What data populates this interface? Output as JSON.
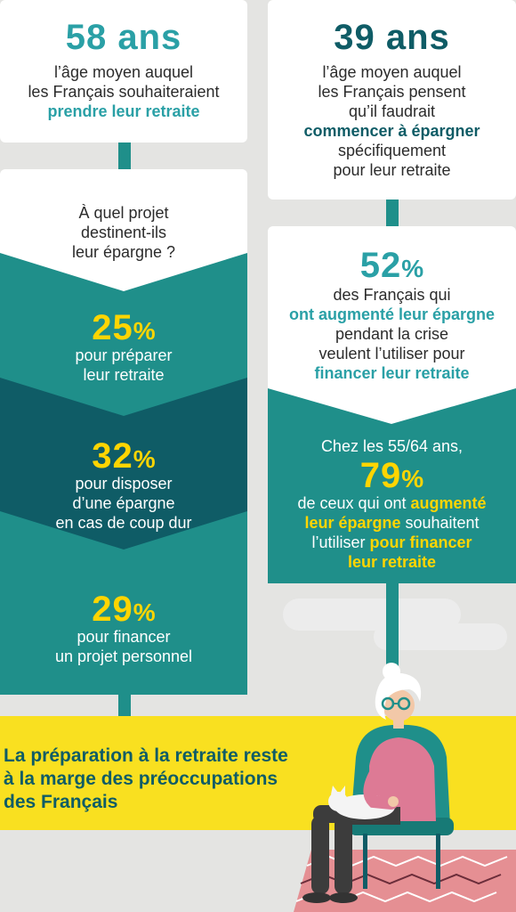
{
  "card1": {
    "number": "58 ans",
    "line1": "l’âge moyen auquel",
    "line2": "les Français souhaiteraient",
    "highlight": "prendre leur retraite"
  },
  "card2": {
    "number": "39 ans",
    "line1": "l’âge moyen auquel",
    "line2": "les Français pensent",
    "line3": "qu’il faudrait",
    "highlight": "commencer à épargner",
    "line4": "spécifiquement",
    "line5": "pour leur retraite"
  },
  "projects": {
    "question_line1": "À quel projet",
    "question_line2": "destinent-ils",
    "question_line3": "leur épargne ?",
    "items": [
      {
        "number": "25",
        "pct": "%",
        "line1": "pour préparer",
        "line2": "leur retraite",
        "line3": ""
      },
      {
        "number": "32",
        "pct": "%",
        "line1": "pour disposer",
        "line2": "d’une épargne",
        "line3": "en cas de coup dur"
      },
      {
        "number": "29",
        "pct": "%",
        "line1": "pour financer",
        "line2": "un projet personnel",
        "line3": ""
      }
    ]
  },
  "stat52": {
    "number": "52",
    "pct": "%",
    "line1": "des Français qui",
    "highlight1": "ont augmenté leur épargne",
    "line2": "pendant la crise",
    "line3": "veulent l’utiliser pour",
    "highlight2": "financer leur retraite"
  },
  "stat79": {
    "intro": "Chez les 55/64 ans,",
    "number": "79",
    "pct": "%",
    "line1a": "de ceux qui ont ",
    "line1b": "augmenté",
    "line2a": "leur épargne",
    "line2b": " souhaitent",
    "line3a": "l’utiliser ",
    "line3b": "pour financer",
    "line4": "leur retraite"
  },
  "banner": {
    "line1": "La préparation à la retraite reste",
    "line2": "à la marge des préoccupations",
    "line3": "des Français"
  },
  "colors": {
    "background": "#e4e4e2",
    "teal": "#1f8f8a",
    "dark_teal": "#0f5c66",
    "light_teal": "#2aa0a6",
    "yellow": "#ffd500",
    "banner": "#f9e020"
  }
}
